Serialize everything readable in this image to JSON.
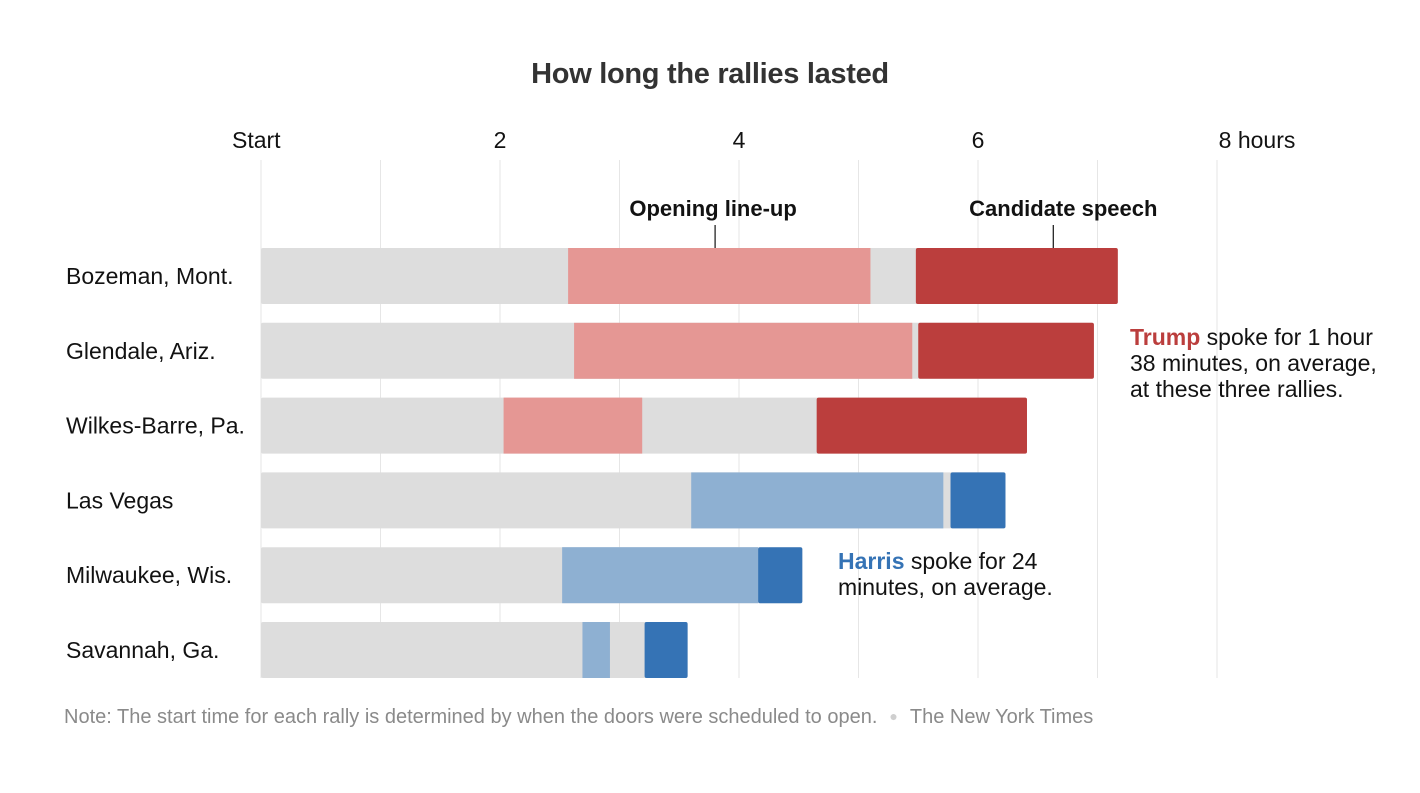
{
  "chart_data": {
    "type": "bar",
    "orientation": "horizontal-stacked-timeline",
    "title": "How long the rallies lasted",
    "x_unit": "hours",
    "xlim": [
      0,
      8.2
    ],
    "ticks": [
      {
        "value": 0,
        "label": "Start"
      },
      {
        "value": 2,
        "label": "2"
      },
      {
        "value": 4,
        "label": "4"
      },
      {
        "value": 6,
        "label": "6"
      },
      {
        "value": 8,
        "label": "8 hours"
      }
    ],
    "grid": true,
    "annotations": [
      {
        "label": "Opening line-up",
        "at_hours": 3.8
      },
      {
        "label": "Candidate speech",
        "at_hours": 6.63
      }
    ],
    "rows": [
      {
        "city": "Bozeman, Mont.",
        "party": "trump",
        "opening_start": 2.57,
        "opening_end": 5.1,
        "speech_start": 5.48,
        "end": 7.17
      },
      {
        "city": "Glendale, Ariz.",
        "party": "trump",
        "opening_start": 2.62,
        "opening_end": 5.45,
        "speech_start": 5.5,
        "end": 6.97
      },
      {
        "city": "Wilkes-Barre, Pa.",
        "party": "trump",
        "opening_start": 2.03,
        "opening_end": 3.19,
        "speech_start": 4.65,
        "end": 6.41
      },
      {
        "city": "Las Vegas",
        "party": "harris",
        "opening_start": 3.6,
        "opening_end": 5.71,
        "speech_start": 5.77,
        "end": 6.23
      },
      {
        "city": "Milwaukee, Wis.",
        "party": "harris",
        "opening_start": 2.52,
        "opening_end": 4.16,
        "speech_start": 4.16,
        "end": 4.53
      },
      {
        "city": "Savannah, Ga.",
        "party": "harris",
        "opening_start": 2.69,
        "opening_end": 2.92,
        "speech_start": 3.21,
        "end": 3.57
      }
    ],
    "callouts": {
      "trump": {
        "name": "Trump",
        "text": " spoke for 1 hour 38 minutes, on average, at these three rallies."
      },
      "harris": {
        "name": "Harris",
        "text": " spoke for 24 minutes, on average."
      }
    },
    "note": "Note: The start time for each rally is determined by when the doors were scheduled to open.",
    "source": "The New York Times"
  },
  "colors": {
    "idle": "#dddddd",
    "grid": "#e6e6e6",
    "trump_opening": "#e59794",
    "trump_speech": "#bb3e3d",
    "harris_opening": "#8eb0d2",
    "harris_speech": "#3573b5",
    "trump_text": "#bb3e3d",
    "harris_text": "#3573b5",
    "ann_line": "#121212"
  }
}
